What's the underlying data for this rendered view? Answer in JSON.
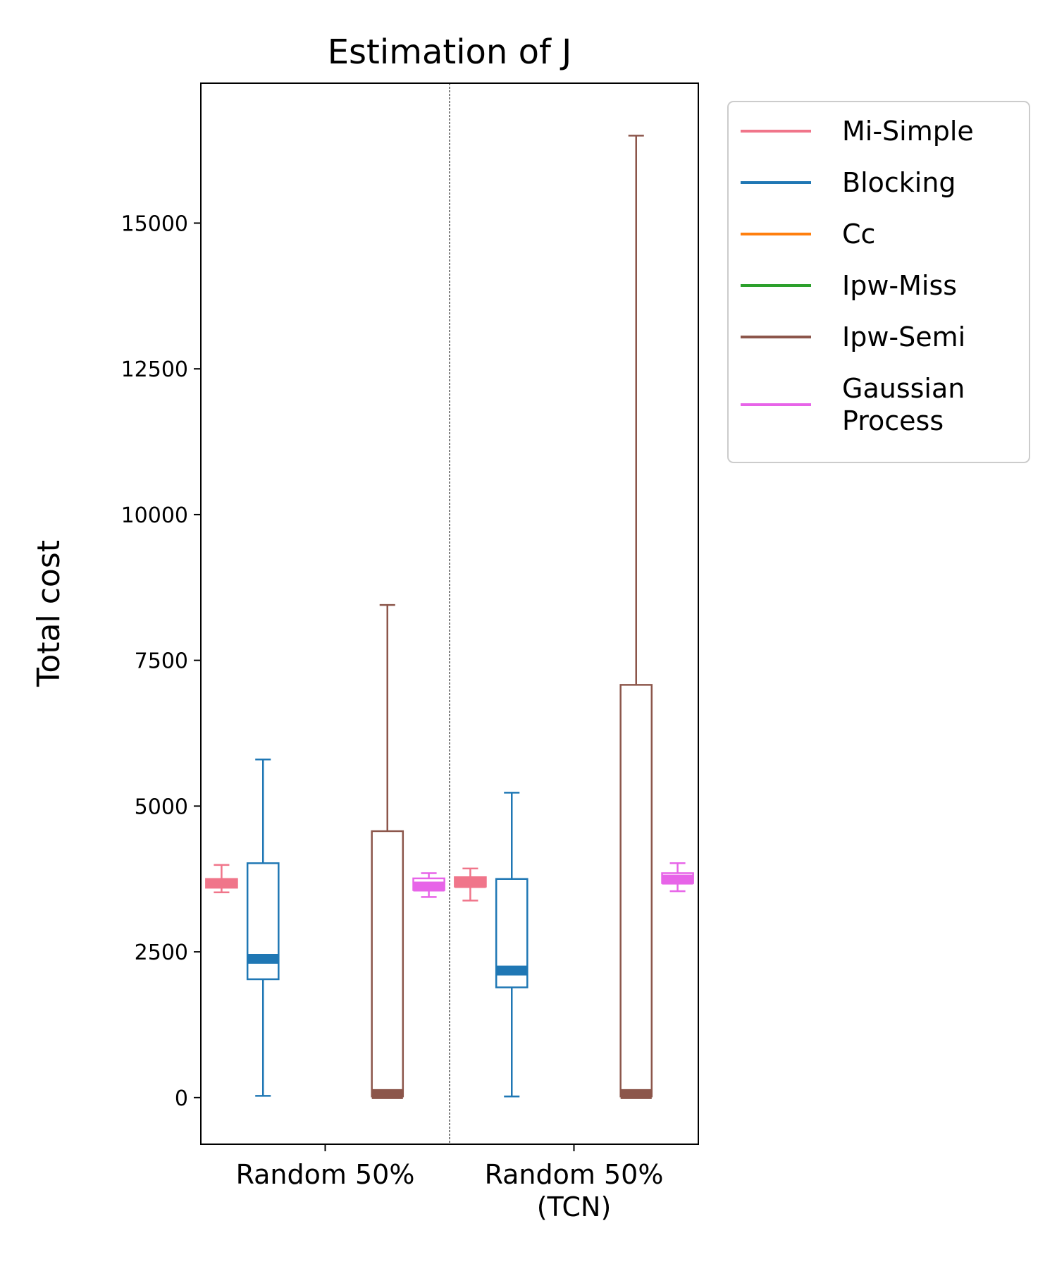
{
  "chart_data": {
    "type": "box",
    "title": "Estimation of J",
    "ylabel": "Total cost",
    "xlabel": "",
    "ylim": [
      -800,
      17400
    ],
    "yticks": [
      0,
      2500,
      5000,
      7500,
      10000,
      12500,
      15000
    ],
    "ytick_labels": [
      "0",
      "2500",
      "5000",
      "7500",
      "10000",
      "12500",
      "15000"
    ],
    "categories": [
      "Random 50%",
      "Random 50%\n(TCN)"
    ],
    "category_lines": [
      [
        "Random 50%"
      ],
      [
        "Random 50%",
        "(TCN)"
      ]
    ],
    "legend_location": "outside upper right",
    "grid": false,
    "series": [
      {
        "name": "Mi-Simple",
        "label_lines": [
          "Mi-Simple"
        ],
        "color": "#f0758a",
        "boxes": [
          {
            "whislo": 3520,
            "q1": 3600,
            "med": 3680,
            "q3": 3750,
            "whishi": 3990
          },
          {
            "whislo": 3380,
            "q1": 3620,
            "med": 3680,
            "q3": 3780,
            "whishi": 3930
          }
        ]
      },
      {
        "name": "Blocking",
        "label_lines": [
          "Blocking"
        ],
        "color": "#1f77b4",
        "boxes": [
          {
            "whislo": 30,
            "q1": 2030,
            "med": 2380,
            "q3": 4020,
            "whishi": 5800
          },
          {
            "whislo": 20,
            "q1": 1890,
            "med": 2180,
            "q3": 3750,
            "whishi": 5230
          }
        ]
      },
      {
        "name": "Cc",
        "label_lines": [
          "Cc"
        ],
        "color": "#ff7f0e",
        "boxes": [
          null,
          null
        ]
      },
      {
        "name": "Ipw-Miss",
        "label_lines": [
          "Ipw-Miss"
        ],
        "color": "#2ca02c",
        "boxes": [
          null,
          null
        ]
      },
      {
        "name": "Ipw-Semi",
        "label_lines": [
          "Ipw-Semi"
        ],
        "color": "#8c564b",
        "boxes": [
          {
            "whislo": 20,
            "q1": 20,
            "med": 60,
            "q3": 4570,
            "whishi": 8450
          },
          {
            "whislo": 20,
            "q1": 20,
            "med": 60,
            "q3": 7080,
            "whishi": 16500
          }
        ]
      },
      {
        "name": "Gaussian Process",
        "label_lines": [
          "Gaussian",
          "Process"
        ],
        "color": "#e764e8",
        "boxes": [
          {
            "whislo": 3440,
            "q1": 3560,
            "med": 3620,
            "q3": 3760,
            "whishi": 3850
          },
          {
            "whislo": 3540,
            "q1": 3680,
            "med": 3740,
            "q3": 3850,
            "whishi": 4020
          }
        ]
      }
    ]
  }
}
